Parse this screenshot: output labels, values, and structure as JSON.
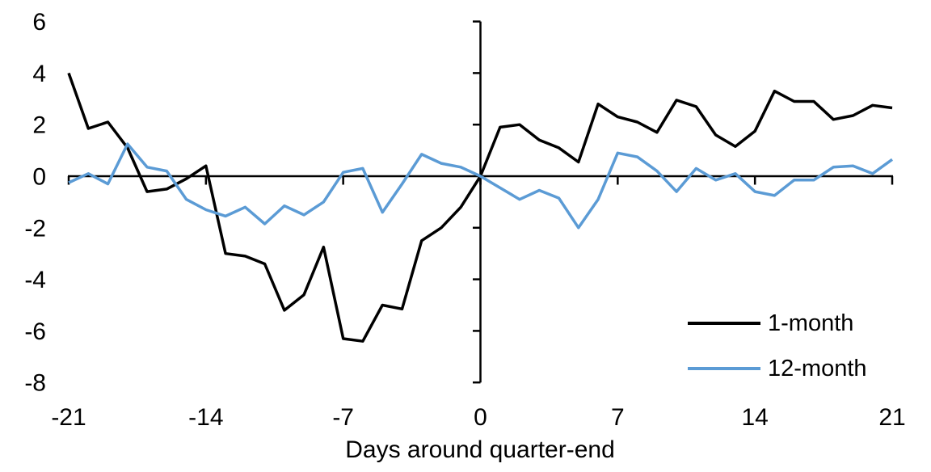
{
  "chart_data": {
    "type": "line",
    "title": "",
    "xlabel": "Days around quarter-end",
    "ylabel": "",
    "x": [
      -21,
      -20,
      -19,
      -18,
      -17,
      -16,
      -15,
      -14,
      -13,
      -12,
      -11,
      -10,
      -9,
      -8,
      -7,
      -6,
      -5,
      -4,
      -3,
      -2,
      -1,
      0,
      1,
      2,
      3,
      4,
      5,
      6,
      7,
      8,
      9,
      10,
      11,
      12,
      13,
      14,
      15,
      16,
      17,
      18,
      19,
      20,
      21
    ],
    "series": [
      {
        "name": "1-month",
        "color": "#000000",
        "values": [
          4.0,
          1.85,
          2.1,
          1.1,
          -0.6,
          -0.5,
          -0.1,
          0.4,
          -3.0,
          -3.1,
          -3.4,
          -5.2,
          -4.6,
          -2.75,
          -6.3,
          -6.4,
          -5.0,
          -5.15,
          -2.5,
          -2.0,
          -1.2,
          0.0,
          1.9,
          2.0,
          1.4,
          1.1,
          0.55,
          2.8,
          2.3,
          2.1,
          1.7,
          2.95,
          2.7,
          1.6,
          1.15,
          1.75,
          3.3,
          2.9,
          2.9,
          2.2,
          2.35,
          2.75,
          2.65
        ]
      },
      {
        "name": "12-month",
        "color": "#5B9BD5",
        "values": [
          -0.25,
          0.1,
          -0.3,
          1.25,
          0.35,
          0.2,
          -0.9,
          -1.3,
          -1.55,
          -1.2,
          -1.85,
          -1.15,
          -1.5,
          -1.0,
          0.15,
          0.3,
          -1.4,
          -0.3,
          0.85,
          0.5,
          0.35,
          0.0,
          -0.45,
          -0.9,
          -0.55,
          -0.85,
          -2.0,
          -0.9,
          0.9,
          0.75,
          0.2,
          -0.6,
          0.3,
          -0.15,
          0.1,
          -0.6,
          -0.75,
          -0.15,
          -0.15,
          0.35,
          0.4,
          0.1,
          0.65
        ]
      }
    ],
    "xlim": [
      -21,
      21
    ],
    "ylim": [
      -8,
      6
    ],
    "xticks": [
      -21,
      -14,
      -7,
      0,
      7,
      14,
      21
    ],
    "yticks": [
      6,
      4,
      2,
      0,
      -2,
      -4,
      -6,
      -8
    ],
    "grid": false,
    "legend_position": "inside-right",
    "axis_color": "#000000",
    "background": "#FFFFFF"
  }
}
